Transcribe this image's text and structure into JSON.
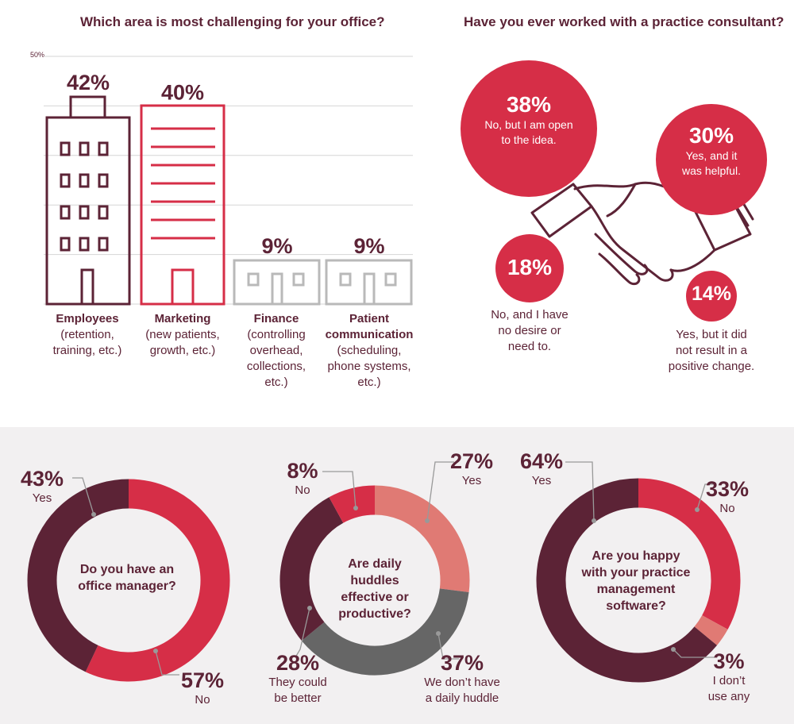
{
  "colors": {
    "dark": "#5c2336",
    "red": "#d62e47",
    "salmon": "#e07a74",
    "gray": "#666666",
    "lightgray": "#bbbbbb",
    "bg_bottom": "#f2f0f1"
  },
  "chart_data": [
    {
      "type": "bar",
      "title": "Which area is most challenging for your office?",
      "ytick": "50%",
      "ylim": [
        0,
        50
      ],
      "grid": true,
      "categories": [
        {
          "name": "Employees",
          "detail": [
            "(retention,",
            "training, etc.)"
          ],
          "value": 42,
          "label": "42%",
          "icon": "office-building-icon"
        },
        {
          "name": "Marketing",
          "detail": [
            "(new patients,",
            "growth, etc.)"
          ],
          "value": 40,
          "label": "40%",
          "icon": "storefront-icon"
        },
        {
          "name": "Finance",
          "detail": [
            "(controlling",
            "overhead,",
            "collections,",
            "etc.)"
          ],
          "value": 9,
          "label": "9%",
          "icon": "low-building-icon"
        },
        {
          "name": "Patient",
          "name2": "communication",
          "detail": [
            "(scheduling,",
            "phone systems,",
            "etc.)"
          ],
          "value": 9,
          "label": "9%",
          "icon": "low-building-icon"
        }
      ]
    },
    {
      "type": "bubble",
      "title": "Have you ever worked with a practice consultant?",
      "bubbles": [
        {
          "value": 38,
          "label": "38%",
          "text": [
            "No, but I am open",
            "to the idea."
          ]
        },
        {
          "value": 30,
          "label": "30%",
          "text": [
            "Yes, and it",
            "was helpful."
          ]
        },
        {
          "value": 18,
          "label": "18%",
          "text": [
            "No, and I have",
            "no desire or",
            "need to."
          ]
        },
        {
          "value": 14,
          "label": "14%",
          "text": [
            "Yes, but it did",
            "not result in a",
            "positive change."
          ]
        }
      ]
    },
    {
      "type": "pie",
      "title": "Do you have an office manager?",
      "title_lines": [
        "Do you have an",
        "office manager?"
      ],
      "slices": [
        {
          "name": "No",
          "value": 57,
          "label": "57%",
          "color": "#d62e47"
        },
        {
          "name": "Yes",
          "value": 43,
          "label": "43%",
          "color": "#5c2336"
        }
      ]
    },
    {
      "type": "pie",
      "title": "Are daily huddles effective or productive?",
      "title_lines": [
        "Are daily huddles",
        "effective or",
        "productive?"
      ],
      "slices": [
        {
          "name": "Yes",
          "value": 27,
          "label": "27%",
          "color": "#e07a74"
        },
        {
          "name": "We don’t have a daily huddle",
          "value": 37,
          "label": "37%",
          "color": "#666666"
        },
        {
          "name": "They could be better",
          "value": 28,
          "label": "28%",
          "color": "#5c2336"
        },
        {
          "name": "No",
          "value": 8,
          "label": "8%",
          "color": "#d62e47"
        }
      ]
    },
    {
      "type": "pie",
      "title": "Are you happy with your practice management software?",
      "title_lines": [
        "Are you happy",
        "with your practice",
        "management",
        "software?"
      ],
      "slices": [
        {
          "name": "No",
          "value": 33,
          "label": "33%",
          "color": "#d62e47"
        },
        {
          "name": "I don’t use any",
          "value": 3,
          "label": "3%",
          "color": "#e07a74"
        },
        {
          "name": "Yes",
          "value": 64,
          "label": "64%",
          "color": "#5c2336"
        }
      ]
    }
  ],
  "donut_labels": {
    "d1": {
      "yes": [
        "43%",
        "Yes"
      ],
      "no": [
        "57%",
        "No"
      ]
    },
    "d2": {
      "yes": [
        "27%",
        "Yes"
      ],
      "no": [
        "8%",
        "No"
      ],
      "better": [
        "28%",
        "They could",
        "be better"
      ],
      "none": [
        "37%",
        "We don’t have",
        "a daily huddle"
      ]
    },
    "d3": {
      "yes": [
        "64%",
        "Yes"
      ],
      "no": [
        "33%",
        "No"
      ],
      "none": [
        "3%",
        "I don’t",
        "use any"
      ]
    }
  }
}
